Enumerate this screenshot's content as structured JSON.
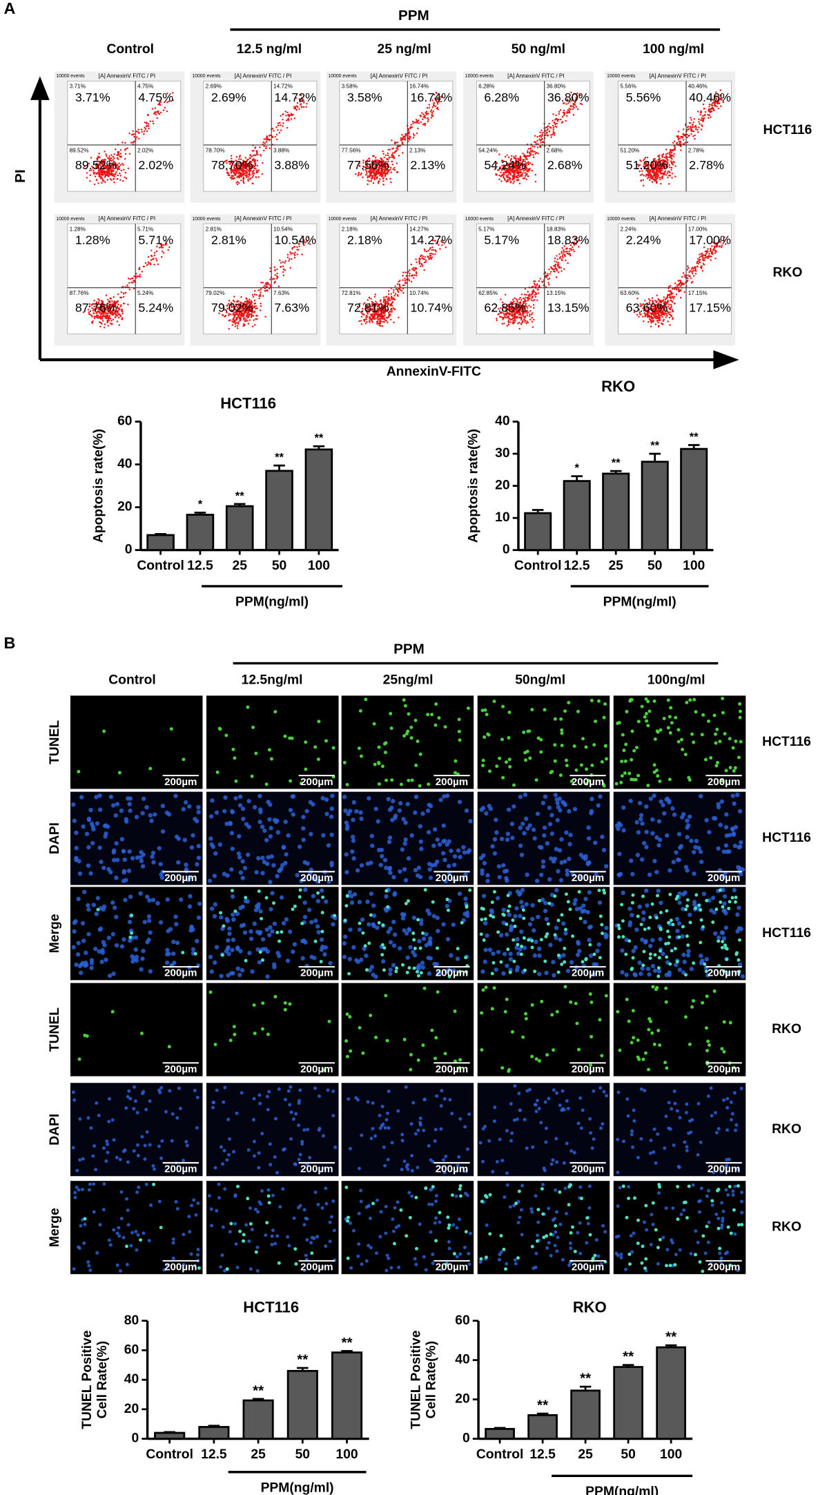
{
  "panel_a": {
    "label": "A",
    "group_label": "PPM",
    "columns": [
      "Control",
      "12.5 ng/ml",
      "25 ng/ml",
      "50 ng/ml",
      "100 ng/ml"
    ],
    "rows": [
      "HCT116",
      "RKO"
    ],
    "y_axis_label": "PI",
    "x_axis_label": "AnnexinV-FITC",
    "plot_title": "[A] AnnexinV FITC / PI",
    "events": "10000 events",
    "quadrants": [
      [
        [
          "3.71%",
          "4.75%",
          "89.52%",
          "2.02%"
        ],
        [
          "2.69%",
          "14.72%",
          "78.70%",
          "3.88%"
        ],
        [
          "3.58%",
          "16.74%",
          "77.56%",
          "2.13%"
        ],
        [
          "6.28%",
          "36.80%",
          "54.24%",
          "2.68%"
        ],
        [
          "5.56%",
          "40.46%",
          "51.20%",
          "2.78%"
        ]
      ],
      [
        [
          "1.28%",
          "5.71%",
          "87.76%",
          "5.24%"
        ],
        [
          "2.81%",
          "10.54%",
          "79.02%",
          "7.63%"
        ],
        [
          "2.18%",
          "14.27%",
          "72.81%",
          "10.74%"
        ],
        [
          "5.17%",
          "18.83%",
          "62.85%",
          "13.15%"
        ],
        [
          "2.24%",
          "17.00%",
          "63.60%",
          "17.15%"
        ]
      ]
    ]
  },
  "chart_data": [
    {
      "type": "bar",
      "title": "HCT116",
      "y_label": "Apoptosis rate(%)",
      "categories": [
        "Control",
        "12.5",
        "25",
        "50",
        "100"
      ],
      "values": [
        7,
        16.5,
        20.5,
        37,
        47
      ],
      "errors": [
        0.5,
        1,
        1,
        2.5,
        1.5
      ],
      "significance": [
        null,
        "*",
        "**",
        "**",
        "**"
      ],
      "group_label": "PPM(ng/ml)",
      "ylim": [
        0,
        60
      ],
      "yticks": [
        0,
        20,
        40,
        60
      ],
      "color": "#595959"
    },
    {
      "type": "bar",
      "title": "RKO",
      "y_label": "Apoptosis rate(%)",
      "categories": [
        "Control",
        "12.5",
        "25",
        "50",
        "100"
      ],
      "values": [
        11.5,
        21.5,
        23.8,
        27.5,
        31.5
      ],
      "errors": [
        1,
        1.5,
        0.8,
        2.5,
        1.2
      ],
      "significance": [
        null,
        "*",
        "**",
        "**",
        "**"
      ],
      "group_label": "PPM(ng/ml)",
      "ylim": [
        0,
        40
      ],
      "yticks": [
        0,
        10,
        20,
        30,
        40
      ],
      "color": "#595959"
    },
    {
      "type": "bar",
      "title": "HCT116",
      "y_label": [
        "TUNEL Positive",
        "Cell Rate(%)"
      ],
      "categories": [
        "Control",
        "12.5",
        "25",
        "50",
        "100"
      ],
      "values": [
        4,
        8,
        26,
        46,
        58.5
      ],
      "errors": [
        0.5,
        0.8,
        1,
        2,
        1
      ],
      "significance": [
        null,
        null,
        "**",
        "**",
        "**"
      ],
      "group_label": "PPM(ng/ml)",
      "ylim": [
        0,
        80
      ],
      "yticks": [
        0,
        20,
        40,
        60,
        80
      ],
      "color": "#595959"
    },
    {
      "type": "bar",
      "title": "RKO",
      "y_label": [
        "TUNEL Positive",
        "Cell Rate(%)"
      ],
      "categories": [
        "Control",
        "12.5",
        "25",
        "50",
        "100"
      ],
      "values": [
        5,
        12,
        24.5,
        36.5,
        46.5
      ],
      "errors": [
        0.5,
        0.8,
        2,
        1,
        1
      ],
      "significance": [
        null,
        "**",
        "**",
        "**",
        "**"
      ],
      "group_label": "PPM(ng/ml)",
      "ylim": [
        0,
        60
      ],
      "yticks": [
        0,
        20,
        40,
        60
      ],
      "color": "#595959"
    }
  ],
  "panel_b": {
    "label": "B",
    "group_label": "PPM",
    "columns": [
      "Control",
      "12.5ng/ml",
      "25ng/ml",
      "50ng/ml",
      "100ng/ml"
    ],
    "rows": [
      {
        "stain": "TUNEL",
        "cell_line": "HCT116"
      },
      {
        "stain": "DAPI",
        "cell_line": "HCT116"
      },
      {
        "stain": "Merge",
        "cell_line": "HCT116"
      },
      {
        "stain": "TUNEL",
        "cell_line": "RKO"
      },
      {
        "stain": "DAPI",
        "cell_line": "RKO"
      },
      {
        "stain": "Merge",
        "cell_line": "RKO"
      }
    ],
    "scale_bar": "200µm"
  }
}
